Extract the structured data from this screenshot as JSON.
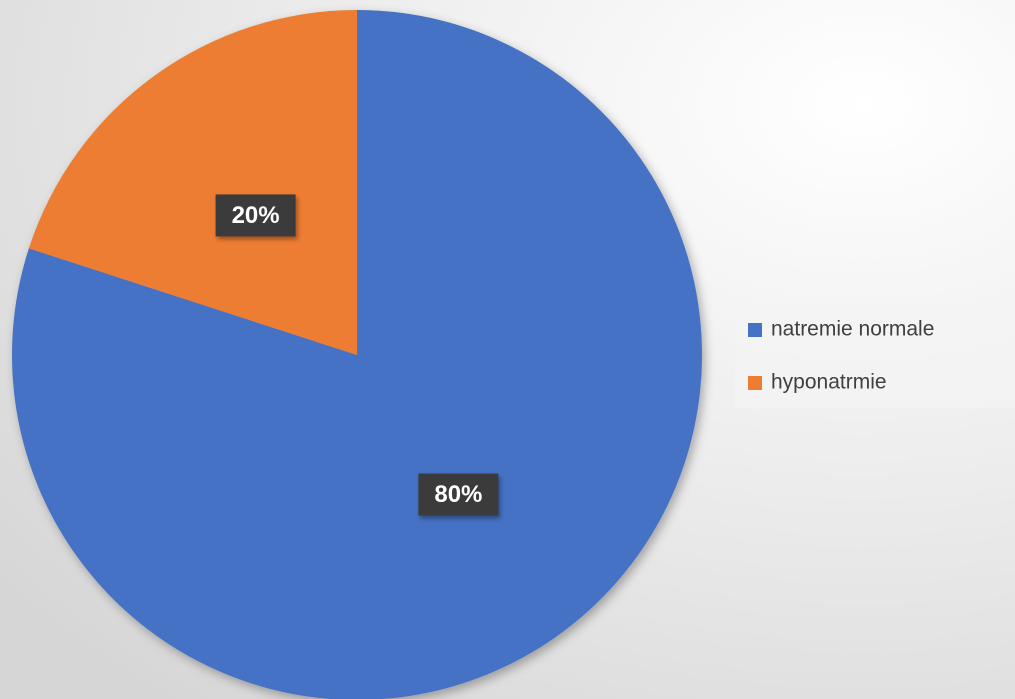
{
  "chart_data": {
    "type": "pie",
    "categories": [
      "natremie normale",
      "hyponatrmie"
    ],
    "values": [
      80,
      20
    ],
    "value_labels": [
      "80%",
      "20%"
    ],
    "colors": [
      "#4472c4",
      "#ed7d31"
    ],
    "legend": "right"
  }
}
